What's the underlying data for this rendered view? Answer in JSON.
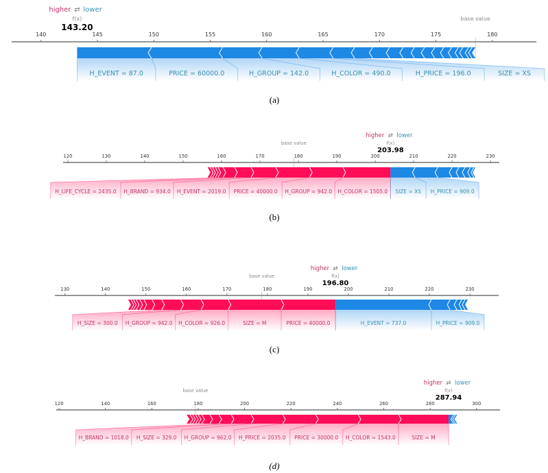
{
  "colors": {
    "positive": "#ff0d57",
    "negative": "#1e88e5",
    "positive_text": "#c0306a",
    "negative_text": "#3a8fb0",
    "axis": "#555555",
    "muted_text": "#888888"
  },
  "chart_data": [
    {
      "type": "force-plot",
      "caption": "(a)",
      "higher_label": "higher",
      "arrow_symbol": "⇄",
      "lower_label": "lower",
      "fx_label": "f(x)",
      "fx": 143.2,
      "fx_text": "143.20",
      "base_label": "base value",
      "base_value": 178.5,
      "axis": {
        "min": 137.4,
        "max": 183.9,
        "ticks": [
          140,
          145,
          150,
          155,
          160,
          165,
          170,
          175,
          180
        ]
      },
      "higher": [],
      "lower": [
        {
          "label": "H_EVENT = 87.0",
          "value": 6.6
        },
        {
          "label": "PRICE = 60000.0",
          "value": 6.3
        },
        {
          "label": "H_GROUP = 142.0",
          "value": 3.5
        },
        {
          "label": "H_COLOR = 490.0",
          "value": 3.3
        },
        {
          "label": "H_PRICE = 196.0",
          "value": 3.0
        },
        {
          "label": "SIZE = XS",
          "value": 1.9
        },
        {
          "value": 1.6
        },
        {
          "value": 1.5
        },
        {
          "value": 1.2
        },
        {
          "value": 1.0
        },
        {
          "value": 0.9
        },
        {
          "value": 0.9
        },
        {
          "value": 0.8
        },
        {
          "value": 0.7
        },
        {
          "value": 0.6
        },
        {
          "value": 0.4
        },
        {
          "value": 0.5
        },
        {
          "value": 0.3
        },
        {
          "value": 0.3
        }
      ]
    },
    {
      "type": "force-plot",
      "caption": "(b)",
      "higher_label": "higher",
      "arrow_symbol": "⇄",
      "lower_label": "lower",
      "fx_label": "f(x)",
      "fx": 203.98,
      "fx_text": "203.98",
      "base_label": "base value",
      "base_value": 178.8,
      "axis": {
        "min": 118.75,
        "max": 232.3,
        "ticks": [
          120,
          130,
          140,
          150,
          160,
          170,
          180,
          190,
          200,
          210,
          220,
          230
        ]
      },
      "higher": [
        {
          "label": "H_COLOR = 1505.0",
          "value": 12.4
        },
        {
          "label": "H_GROUP = 942.0",
          "value": 8.7
        },
        {
          "label": "PRICE = 40000.0",
          "value": 8.8
        },
        {
          "label": "H_EVENT = 2019.0",
          "value": 6.4
        },
        {
          "label": "H_BRAND = 934.0",
          "value": 4.3
        },
        {
          "label": "H_LIFE_CYCLE = 2435.0",
          "value": 3.0
        },
        {
          "value": 1.3
        },
        {
          "value": 0.7
        },
        {
          "value": 0.7
        },
        {
          "value": 0.6
        },
        {
          "value": 0.7
        }
      ],
      "lower": [
        {
          "label": "SIZE = XS",
          "value": 6.4
        },
        {
          "label": "H_PRICE = 909.0",
          "value": 5.9
        },
        {
          "value": 3.7
        },
        {
          "value": 1.8
        },
        {
          "value": 1.6
        },
        {
          "value": 1.4
        },
        {
          "value": 0.9
        },
        {
          "value": 0.4
        }
      ]
    },
    {
      "type": "force-plot",
      "caption": "(c)",
      "higher_label": "higher",
      "arrow_symbol": "⇄",
      "lower_label": "lower",
      "fx_label": "f(x)",
      "fx": 196.8,
      "fx_text": "196.80",
      "base_label": "base value",
      "base_value": 178.6,
      "axis": {
        "min": 127.5,
        "max": 237.1,
        "ticks": [
          130,
          140,
          150,
          160,
          170,
          180,
          190,
          200,
          210,
          220,
          230
        ]
      },
      "higher": [
        {
          "label": "PRICE = 40000.0",
          "value": 13.4
        },
        {
          "label": "SIZE = M",
          "value": 13.1
        },
        {
          "label": "H_COLOR = 926.0",
          "value": 6.7
        },
        {
          "label": "H_GROUP = 942.0",
          "value": 5.0
        },
        {
          "label": "H_SIZE = 300.0",
          "value": 4.7
        },
        {
          "value": 2.4
        },
        {
          "value": 2.0
        },
        {
          "value": 1.0
        },
        {
          "value": 0.9
        },
        {
          "value": 0.7
        },
        {
          "value": 0.6
        },
        {
          "value": 0.7
        }
      ],
      "lower": [
        {
          "label": "H_EVENT = 737.0",
          "value": 23.7
        },
        {
          "label": "H_PRICE = 909.0",
          "value": 4.6
        },
        {
          "value": 1.7
        },
        {
          "value": 1.2
        },
        {
          "value": 0.8
        },
        {
          "value": 0.7
        }
      ]
    },
    {
      "type": "force-plot",
      "caption": "(d)",
      "higher_label": "higher",
      "arrow_symbol": "⇄",
      "lower_label": "lower",
      "fx_label": "f(x)",
      "fx": 287.94,
      "fx_text": "287.94",
      "base_label": "base value",
      "base_value": 178.8,
      "axis": {
        "min": 118.8,
        "max": 310.1,
        "ticks": [
          120,
          140,
          160,
          180,
          200,
          220,
          240,
          260,
          280,
          300
        ]
      },
      "higher": [
        {
          "label": "SIZE = M",
          "value": 21.6
        },
        {
          "label": "H_COLOR = 1543.0",
          "value": 17.4
        },
        {
          "label": "PRICE = 30000.0",
          "value": 18.3
        },
        {
          "label": "H_PRICE = 2035.0",
          "value": 14.2
        },
        {
          "label": "H_GROUP = 962.0",
          "value": 13.6
        },
        {
          "label": "H_SIZE = 329.0",
          "value": 8.6
        },
        {
          "label": "H_BRAND = 1018.0",
          "value": 5.3
        },
        {
          "value": 3.9
        },
        {
          "value": 3.5
        },
        {
          "value": 1.5
        },
        {
          "value": 1.2
        },
        {
          "value": 1.2
        },
        {
          "value": 1.1
        },
        {
          "value": 1.5
        }
      ],
      "lower": [
        {
          "value": 2.2
        },
        {
          "value": 0.8
        },
        {
          "value": 0.7
        }
      ]
    }
  ]
}
